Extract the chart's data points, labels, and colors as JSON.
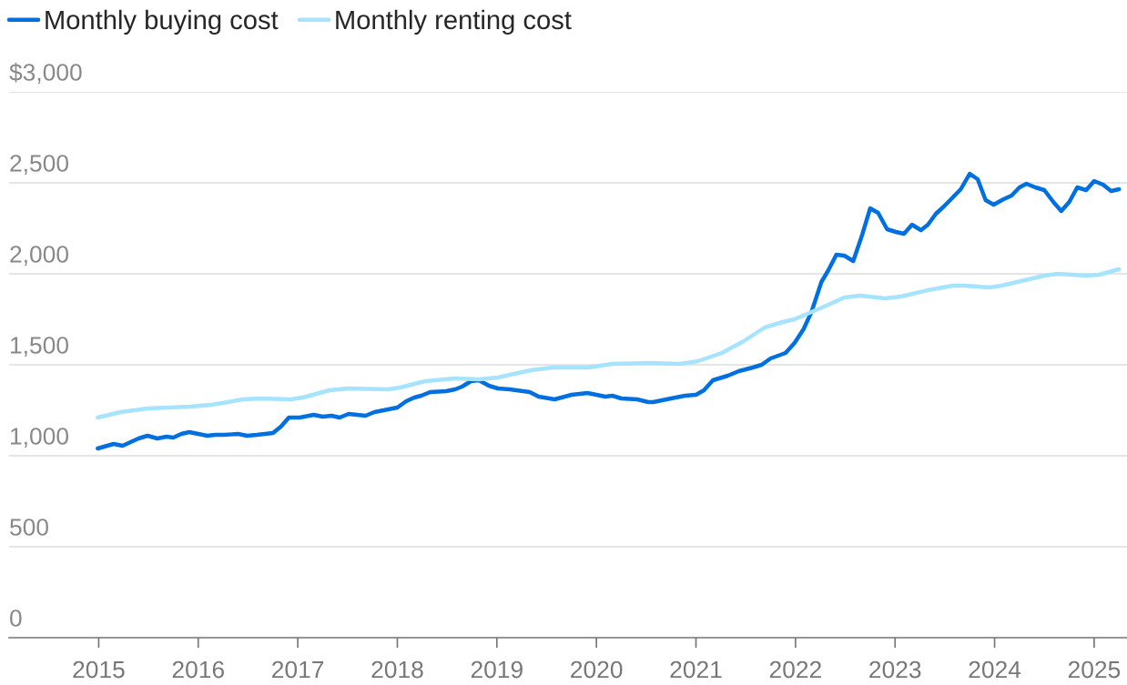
{
  "chart_data": {
    "type": "line",
    "xlim": [
      2014.1,
      2025.33
    ],
    "xticks": [
      2015,
      2016,
      2017,
      2018,
      2019,
      2020,
      2021,
      2022,
      2023,
      2024,
      2025
    ],
    "ylim": [
      0,
      3000
    ],
    "yticks": [
      0,
      500,
      {
        "value": 1000,
        "label": "1,000"
      },
      {
        "value": 1500,
        "label": "1,500"
      },
      {
        "value": 2000,
        "label": "2,000"
      },
      {
        "value": 2500,
        "label": "2,500"
      },
      {
        "value": 3000,
        "label": "$3,000"
      }
    ],
    "grid": "y",
    "legend": "top left",
    "marker": "none",
    "line_style": "solid",
    "series": [
      {
        "name": "Monthly buying cost",
        "color": "#0070e0",
        "x": [
          2014.99,
          2015.15,
          2015.24,
          2015.4,
          2015.49,
          2015.59,
          2015.68,
          2015.75,
          2015.83,
          2015.91,
          2016.0,
          2016.09,
          2016.17,
          2016.26,
          2016.4,
          2016.49,
          2016.59,
          2016.75,
          2016.83,
          2016.91,
          2017.02,
          2017.16,
          2017.25,
          2017.34,
          2017.42,
          2017.51,
          2017.68,
          2017.77,
          2018.0,
          2018.09,
          2018.17,
          2018.24,
          2018.33,
          2018.49,
          2018.58,
          2018.65,
          2018.74,
          2018.82,
          2018.92,
          2019.01,
          2019.13,
          2019.33,
          2019.42,
          2019.58,
          2019.75,
          2019.91,
          2020.09,
          2020.16,
          2020.25,
          2020.41,
          2020.52,
          2020.57,
          2020.75,
          2020.89,
          2021.0,
          2021.08,
          2021.17,
          2021.32,
          2021.43,
          2021.57,
          2021.66,
          2021.75,
          2021.9,
          2021.99,
          2022.08,
          2022.16,
          2022.26,
          2022.33,
          2022.41,
          2022.49,
          2022.58,
          2022.67,
          2022.75,
          2022.83,
          2022.92,
          2023.01,
          2023.09,
          2023.17,
          2023.26,
          2023.33,
          2023.41,
          2023.49,
          2023.58,
          2023.66,
          2023.75,
          2023.83,
          2023.91,
          2023.99,
          2024.09,
          2024.17,
          2024.25,
          2024.32,
          2024.41,
          2024.5,
          2024.59,
          2024.67,
          2024.75,
          2024.83,
          2024.92,
          2025.0,
          2025.09,
          2025.17,
          2025.25
        ],
        "values": [
          1040,
          1065,
          1055,
          1095,
          1110,
          1095,
          1105,
          1100,
          1120,
          1130,
          1120,
          1110,
          1115,
          1115,
          1120,
          1110,
          1115,
          1125,
          1160,
          1210,
          1210,
          1225,
          1215,
          1220,
          1210,
          1230,
          1220,
          1240,
          1265,
          1300,
          1320,
          1330,
          1350,
          1355,
          1365,
          1380,
          1410,
          1415,
          1385,
          1370,
          1365,
          1350,
          1325,
          1310,
          1335,
          1345,
          1325,
          1330,
          1315,
          1310,
          1295,
          1295,
          1315,
          1330,
          1335,
          1360,
          1415,
          1440,
          1465,
          1485,
          1500,
          1535,
          1565,
          1620,
          1695,
          1790,
          1955,
          2020,
          2105,
          2100,
          2070,
          2215,
          2360,
          2335,
          2245,
          2230,
          2220,
          2270,
          2240,
          2270,
          2330,
          2370,
          2420,
          2465,
          2550,
          2520,
          2405,
          2380,
          2410,
          2430,
          2475,
          2495,
          2475,
          2460,
          2395,
          2345,
          2395,
          2475,
          2460,
          2510,
          2490,
          2455,
          2465
        ]
      },
      {
        "name": "Monthly renting cost",
        "color": "#a6e3ff",
        "x": [
          2014.99,
          2015.22,
          2015.49,
          2015.92,
          2016.13,
          2016.45,
          2016.63,
          2016.93,
          2017.05,
          2017.32,
          2017.51,
          2017.91,
          2018.03,
          2018.28,
          2018.58,
          2018.82,
          2019.01,
          2019.13,
          2019.34,
          2019.56,
          2019.92,
          2020.16,
          2020.53,
          2020.84,
          2021.02,
          2021.26,
          2021.48,
          2021.69,
          2021.87,
          2021.99,
          2022.16,
          2022.33,
          2022.49,
          2022.65,
          2022.9,
          2023.06,
          2023.33,
          2023.58,
          2023.7,
          2023.95,
          2024.07,
          2024.5,
          2024.64,
          2024.92,
          2025.05,
          2025.25
        ],
        "values": [
          1210,
          1240,
          1260,
          1270,
          1280,
          1310,
          1315,
          1310,
          1320,
          1360,
          1370,
          1365,
          1375,
          1410,
          1425,
          1420,
          1430,
          1445,
          1470,
          1485,
          1485,
          1505,
          1510,
          1505,
          1520,
          1565,
          1630,
          1705,
          1735,
          1750,
          1790,
          1830,
          1870,
          1880,
          1865,
          1875,
          1910,
          1935,
          1935,
          1925,
          1935,
          1990,
          2000,
          1990,
          1995,
          2025
        ]
      }
    ]
  }
}
